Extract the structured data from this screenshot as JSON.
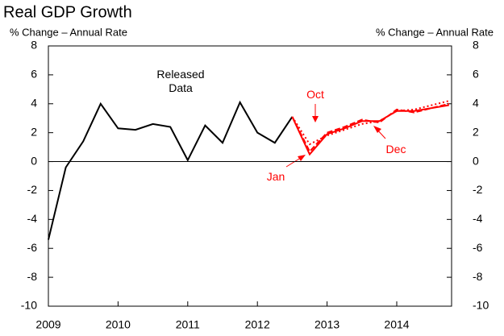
{
  "chart_data": {
    "type": "line",
    "title": "Real GDP Growth",
    "y_label": "% Change – Annual Rate",
    "y2_label": "% Change – Annual Rate",
    "categories": [
      "2009",
      null,
      null,
      null,
      "2010",
      null,
      null,
      null,
      "2011",
      null,
      null,
      null,
      "2012",
      null,
      null,
      null,
      "2013",
      null,
      null,
      null,
      "2014",
      null,
      null,
      null
    ],
    "series": [
      {
        "name": "Released Data",
        "color": "#000000",
        "style": "solid",
        "values": [
          -5.4,
          -0.4,
          1.4,
          4.0,
          2.3,
          2.2,
          2.6,
          2.4,
          0.1,
          2.5,
          1.3,
          4.1,
          2.0,
          1.3,
          3.1,
          null,
          null,
          null,
          null,
          null,
          null,
          null,
          null,
          null
        ]
      },
      {
        "name": "Oct",
        "color": "#ff0000",
        "style": "dotted",
        "values": [
          null,
          null,
          null,
          null,
          null,
          null,
          null,
          null,
          null,
          null,
          null,
          null,
          null,
          null,
          3.1,
          1.2,
          1.8,
          2.2,
          2.6,
          2.8,
          3.5,
          3.6,
          3.9,
          4.2
        ]
      },
      {
        "name": "Dec",
        "color": "#ff0000",
        "style": "dashed",
        "values": [
          null,
          null,
          null,
          null,
          null,
          null,
          null,
          null,
          null,
          null,
          null,
          null,
          null,
          null,
          3.1,
          0.7,
          2.0,
          2.4,
          2.9,
          2.7,
          3.6,
          3.4,
          3.7,
          4.0
        ]
      },
      {
        "name": "Jan",
        "color": "#ff0000",
        "style": "solid",
        "values": [
          null,
          null,
          null,
          null,
          null,
          null,
          null,
          null,
          null,
          null,
          null,
          null,
          null,
          null,
          3.1,
          0.5,
          1.9,
          2.3,
          2.8,
          2.8,
          3.5,
          3.5,
          3.7,
          3.9
        ]
      }
    ],
    "ylim": [
      -10,
      8
    ],
    "yticks": [
      -10,
      -8,
      -6,
      -4,
      -2,
      0,
      2,
      4,
      6,
      8
    ],
    "y2lim": [
      -10,
      8
    ],
    "y2ticks": [
      -10,
      -8,
      -6,
      -4,
      -2,
      0,
      2,
      4,
      6,
      8
    ],
    "grid": false
  }
}
